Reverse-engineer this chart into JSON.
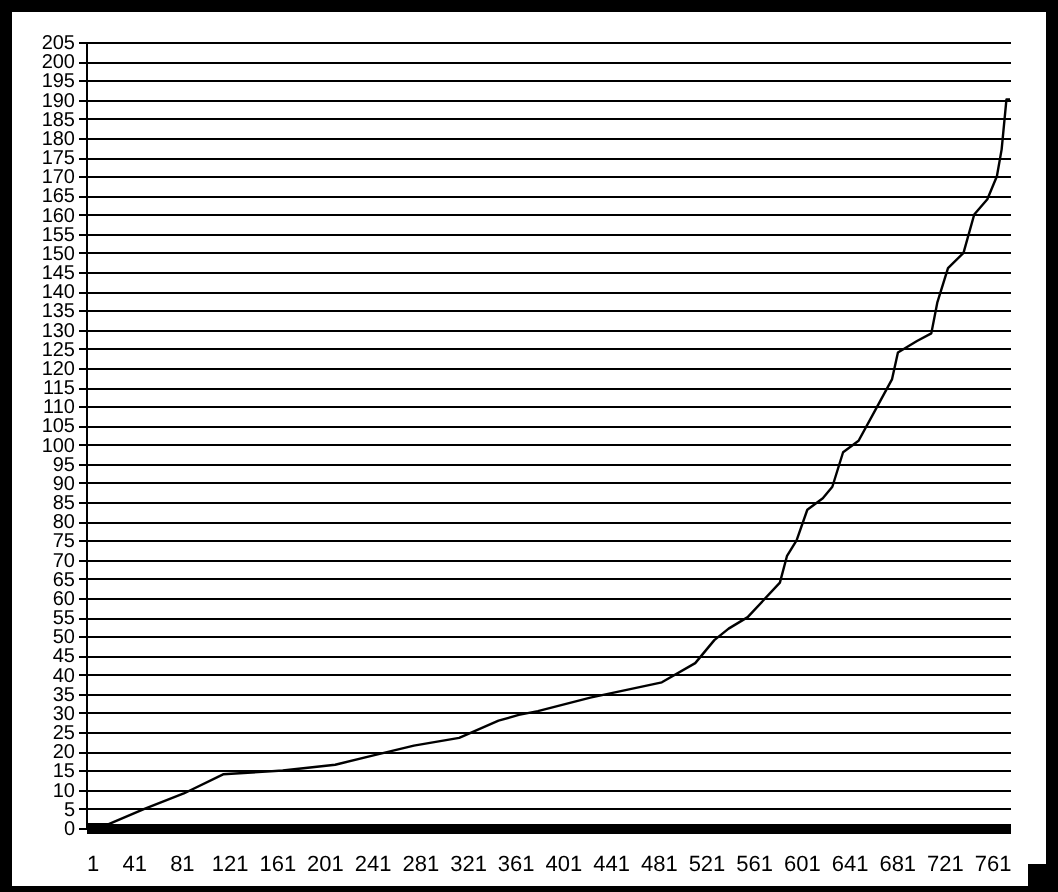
{
  "chart_data": {
    "type": "line",
    "color": "#000000",
    "x": [
      1,
      20,
      50,
      83,
      116,
      166,
      210,
      243,
      276,
      314,
      347,
      364,
      380,
      424,
      484,
      512,
      528,
      540,
      556,
      583,
      589,
      597,
      606,
      619,
      627,
      636,
      649,
      663,
      677,
      682,
      698,
      710,
      715,
      724,
      737,
      746,
      757,
      765,
      769,
      773,
      776
    ],
    "values": [
      1,
      1,
      5,
      9,
      14,
      15,
      16.5,
      19,
      21.5,
      23.5,
      28,
      29.5,
      30.5,
      34,
      38,
      43,
      49,
      52,
      55,
      64,
      71,
      75,
      83,
      86,
      89,
      98,
      101,
      109,
      117,
      124,
      127,
      129,
      137,
      146,
      150,
      160,
      164,
      170,
      177,
      190,
      190
    ],
    "xlim": [
      1,
      776
    ],
    "xticks": [
      1,
      41,
      81,
      121,
      161,
      201,
      241,
      281,
      321,
      361,
      401,
      441,
      481,
      521,
      561,
      601,
      641,
      681,
      721,
      761
    ],
    "ylim": [
      0,
      205
    ],
    "yticks": [
      0,
      5,
      10,
      15,
      20,
      25,
      30,
      35,
      40,
      45,
      50,
      55,
      60,
      65,
      70,
      75,
      80,
      85,
      90,
      95,
      100,
      105,
      110,
      115,
      120,
      125,
      130,
      135,
      140,
      145,
      150,
      155,
      160,
      165,
      170,
      175,
      180,
      185,
      190,
      195,
      200,
      205
    ],
    "grid": "y"
  }
}
